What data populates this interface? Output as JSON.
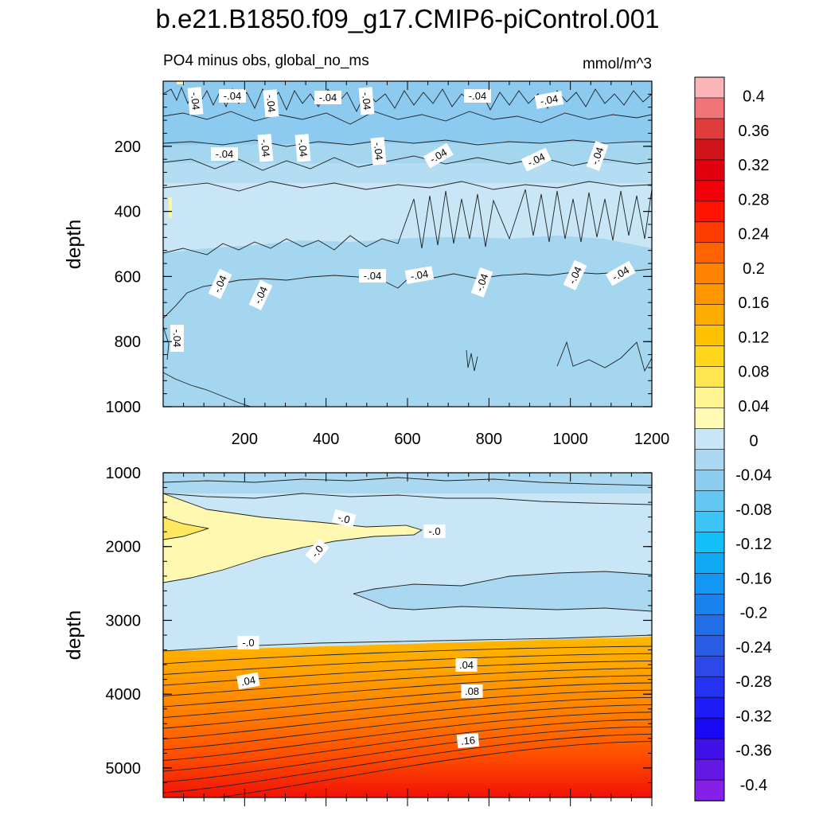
{
  "title": "b.e21.B1850.f09_g17.CMIP6-piControl.001",
  "subtitle_left": "PO4 minus obs, global_no_ms",
  "subtitle_right": "mmol/m^3",
  "chart_data": [
    {
      "type": "heatmap",
      "panel": "upper",
      "ylabel": "depth",
      "xlabel": "",
      "xlim": [
        0,
        1200
      ],
      "ylim": [
        0,
        1000
      ],
      "y_inverted": true,
      "xticks": [
        "200",
        "400",
        "600",
        "800",
        "1000",
        "1200"
      ],
      "yticks": [
        "200",
        "400",
        "600",
        "800",
        "1000"
      ],
      "contour_labels": [
        "-.04",
        "-.04",
        "-.04",
        "-.04",
        "-.04",
        "-.04",
        "-.04",
        "-.04",
        "-.04",
        "-.04",
        "-.04",
        "-.04",
        "-.04",
        "-.04",
        "-.04",
        "-.04",
        "-.04",
        "-.04",
        "-.04",
        "-.04",
        "-.04",
        "-.04"
      ],
      "depth_bands": [
        {
          "depth_range": [
            0,
            150
          ],
          "value_range": [
            -0.08,
            -0.04
          ]
        },
        {
          "depth_range": [
            150,
            230
          ],
          "value_range": [
            -0.08,
            -0.04
          ]
        },
        {
          "depth_range": [
            230,
            520
          ],
          "value_range": [
            -0.04,
            0.0
          ]
        },
        {
          "depth_range": [
            520,
            1000
          ],
          "value_range": [
            -0.08,
            -0.04
          ]
        }
      ]
    },
    {
      "type": "heatmap",
      "panel": "lower",
      "ylabel": "depth",
      "xlabel": "",
      "xlim": [
        0,
        1200
      ],
      "ylim": [
        1000,
        5400
      ],
      "y_inverted": true,
      "yticks": [
        "1000",
        "2000",
        "3000",
        "4000",
        "5000"
      ],
      "contour_labels": [
        "-.0",
        "-.0",
        "-.0",
        "-.0",
        ".04",
        ".04",
        ".08",
        ".16"
      ],
      "depth_bands": [
        {
          "depth_range": [
            1000,
            1450
          ],
          "value_range": [
            -0.08,
            -0.04
          ]
        },
        {
          "depth_range": [
            1450,
            2500
          ],
          "value_range": [
            -0.04,
            0.04
          ]
        },
        {
          "depth_range": [
            2500,
            3300
          ],
          "value_range": [
            -0.08,
            0.0
          ]
        },
        {
          "depth_range": [
            3300,
            5400
          ],
          "value_range": [
            0.0,
            0.36
          ]
        }
      ]
    }
  ],
  "colorbar": {
    "labels": [
      "0.4",
      "0.36",
      "0.32",
      "0.28",
      "0.24",
      "0.2",
      "0.16",
      "0.12",
      "0.08",
      "0.04",
      "0",
      "-0.04",
      "-0.08",
      "-0.12",
      "-0.16",
      "-0.2",
      "-0.24",
      "-0.28",
      "-0.32",
      "-0.36",
      "-0.4"
    ],
    "colors": [
      "#fbb4b8",
      "#f07478",
      "#e03c3c",
      "#d0141c",
      "#e0000e",
      "#f2000a",
      "#ff1400",
      "#ff3c00",
      "#ff6400",
      "#ff8200",
      "#ff9600",
      "#ffac00",
      "#ffc200",
      "#ffd61c",
      "#ffe650",
      "#fff490",
      "#fffab4",
      "#c8e6f6",
      "#aad8f0",
      "#8ccdf0",
      "#64c6f2",
      "#3cc4f8",
      "#14bef8",
      "#10aaf4",
      "#1496f4",
      "#1882ee",
      "#226ee8",
      "#2a5ce4",
      "#2c48e8",
      "#2432f2",
      "#1e1cf6",
      "#1808f4",
      "#4010e8",
      "#6418e4",
      "#8420e8"
    ]
  }
}
